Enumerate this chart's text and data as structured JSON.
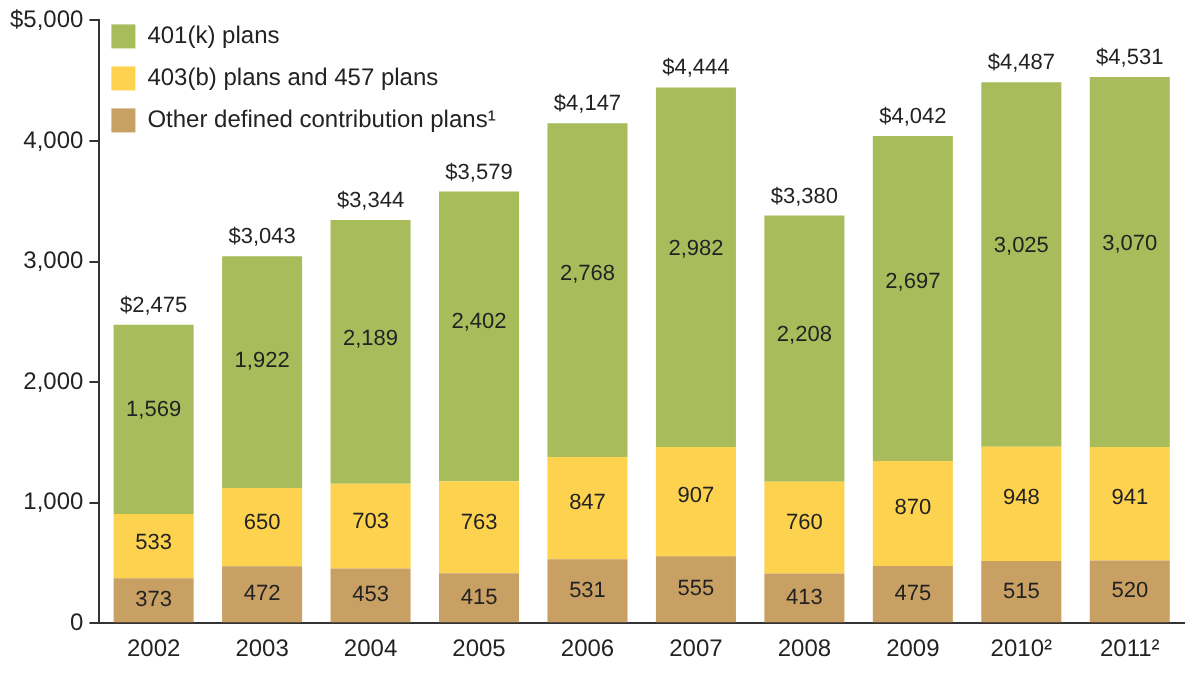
{
  "chart_data": {
    "type": "bar",
    "stacked": true,
    "categories": [
      "2002",
      "2003",
      "2004",
      "2005",
      "2006",
      "2007",
      "2008",
      "2009",
      "2010²",
      "2011²"
    ],
    "series": [
      {
        "name": "Other defined contribution plans¹",
        "color": "#c9a063",
        "values": [
          373,
          472,
          453,
          415,
          531,
          555,
          413,
          475,
          515,
          520
        ],
        "value_labels": [
          "373",
          "472",
          "453",
          "415",
          "531",
          "555",
          "413",
          "475",
          "515",
          "520"
        ]
      },
      {
        "name": "403(b) plans and 457 plans",
        "color": "#fdd24f",
        "values": [
          533,
          650,
          703,
          763,
          847,
          907,
          760,
          870,
          948,
          941
        ],
        "value_labels": [
          "533",
          "650",
          "703",
          "763",
          "847",
          "907",
          "760",
          "870",
          "948",
          "941"
        ]
      },
      {
        "name": "401(k) plans",
        "color": "#a9bc5c",
        "values": [
          1569,
          1922,
          2189,
          2402,
          2768,
          2982,
          2208,
          2697,
          3025,
          3070
        ],
        "value_labels": [
          "1,569",
          "1,922",
          "2,189",
          "2,402",
          "2,768",
          "2,982",
          "2,208",
          "2,697",
          "3,025",
          "3,070"
        ]
      }
    ],
    "totals": [
      "$2,475",
      "$3,043",
      "$3,344",
      "$3,579",
      "$4,147",
      "$4,444",
      "$3,380",
      "$4,042",
      "$4,487",
      "$4,531"
    ],
    "legend": "top left",
    "grid": false,
    "ylim": [
      0,
      5000
    ],
    "yticks": [
      0,
      {
        "value": 1000,
        "label": "1,000"
      },
      {
        "value": 2000,
        "label": "2,000"
      },
      {
        "value": 3000,
        "label": "3,000"
      },
      {
        "value": 4000,
        "label": "4,000"
      },
      {
        "value": 5000,
        "label": "$5,000"
      }
    ]
  }
}
